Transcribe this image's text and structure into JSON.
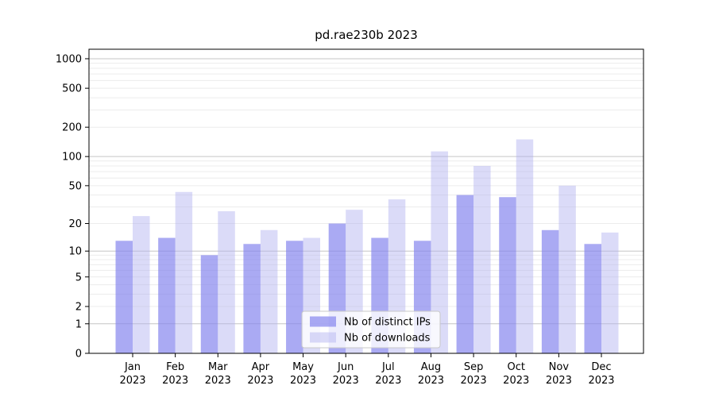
{
  "chart_data": {
    "type": "bar",
    "title": "pd.rae230b 2023",
    "year_label": "2023",
    "categories": [
      "Jan",
      "Feb",
      "Mar",
      "Apr",
      "May",
      "Jun",
      "Jul",
      "Aug",
      "Sep",
      "Oct",
      "Nov",
      "Dec"
    ],
    "series": [
      {
        "name": "Nb of distinct IPs",
        "color": "#a8a8f2",
        "fill": "rgba(130,130,238,0.68)",
        "values": [
          13,
          14,
          9,
          12,
          13,
          20,
          14,
          13,
          40,
          38,
          17,
          12
        ]
      },
      {
        "name": "Nb of downloads",
        "color": "#dadaf9",
        "fill": "rgba(175,175,240,0.45)",
        "values": [
          24,
          43,
          27,
          17,
          14,
          28,
          36,
          113,
          80,
          150,
          50,
          16
        ]
      }
    ],
    "yscale": "log1p",
    "yticks": [
      0,
      1,
      2,
      5,
      10,
      20,
      50,
      100,
      200,
      500,
      1000
    ],
    "ylim": [
      0,
      1250
    ],
    "xlabel": "",
    "ylabel": "",
    "grid": true,
    "grid_major_color": "#c6c6c6",
    "grid_minor_color": "#ececec",
    "spine_color": "#000000",
    "legend_position": "lower-center",
    "legend_bg": "rgba(255,255,255,0.8)",
    "legend_border": "#c8c8c8"
  }
}
